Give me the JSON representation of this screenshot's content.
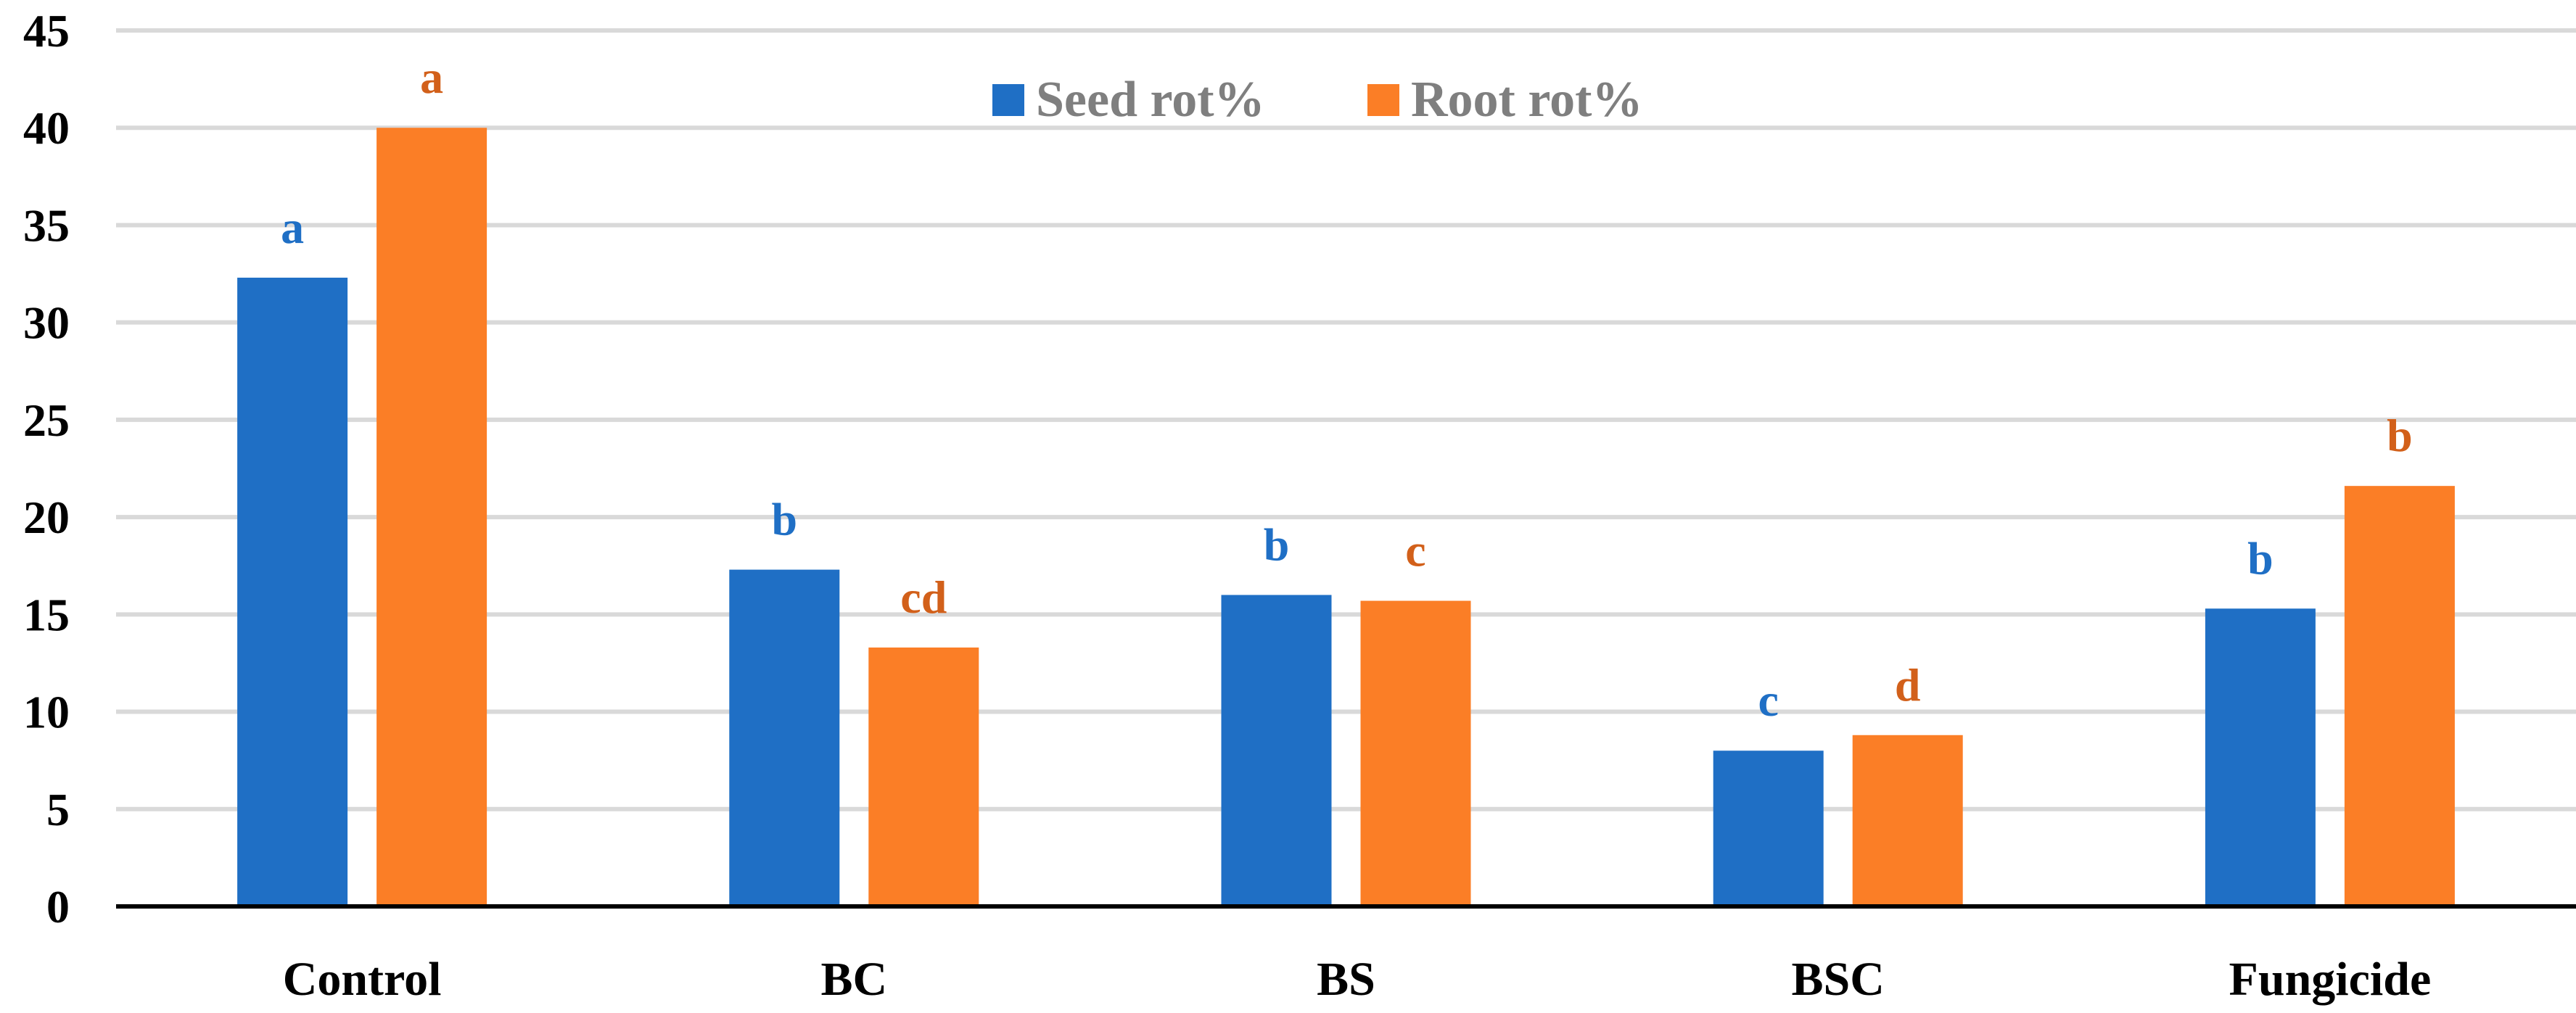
{
  "chart_data": {
    "type": "bar",
    "title": "",
    "xlabel": "",
    "ylabel": "",
    "ylim": [
      0,
      45
    ],
    "yticks": [
      0,
      5,
      10,
      15,
      20,
      25,
      30,
      35,
      40,
      45
    ],
    "grid": true,
    "legend_position": "top-center",
    "categories": [
      "Control",
      "BC",
      "BS",
      "BSC",
      "Fungicide"
    ],
    "series": [
      {
        "name": "Seed rot%",
        "color": "#1f6fc5",
        "values": [
          32.3,
          17.3,
          16.0,
          8.0,
          15.3
        ],
        "labels": [
          "a",
          "b",
          "b",
          "c",
          "b"
        ]
      },
      {
        "name": "Root rot%",
        "color": "#fb7e26",
        "values": [
          40.0,
          13.3,
          15.7,
          8.8,
          21.6
        ],
        "labels": [
          "a",
          "cd",
          "c",
          "d",
          "b"
        ]
      }
    ],
    "label_colors": [
      "#1f6fc5",
      "#d2601a"
    ]
  }
}
